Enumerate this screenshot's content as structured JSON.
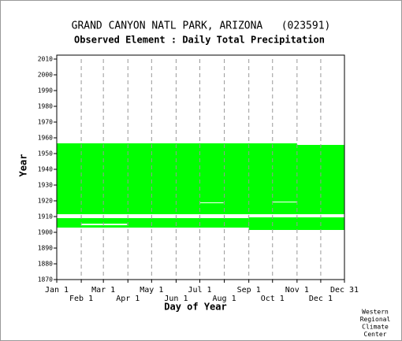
{
  "chart_data": {
    "type": "availability",
    "title": "GRAND CANYON NATL PARK, ARIZONA   (023591)",
    "subtitle": "Observed Element : Daily Total Precipitation",
    "ylabel": "Year",
    "xlabel": "Day of Year",
    "credit": [
      "Western",
      "Regional",
      "Climate",
      "Center"
    ],
    "color": "#00ff00",
    "gap_color": "#ffffff",
    "xgrid": true,
    "xlim": [
      1,
      365
    ],
    "ylim": [
      1870,
      2010
    ],
    "xticks": [
      {
        "value": 1,
        "label": "Jan 1"
      },
      {
        "value": 32,
        "label": "Feb 1"
      },
      {
        "value": 60,
        "label": "Mar 1"
      },
      {
        "value": 91,
        "label": "Apr 1"
      },
      {
        "value": 121,
        "label": "May 1"
      },
      {
        "value": 152,
        "label": "Jun 1"
      },
      {
        "value": 182,
        "label": "Jul 1"
      },
      {
        "value": 213,
        "label": "Aug 1"
      },
      {
        "value": 244,
        "label": "Sep 1"
      },
      {
        "value": 274,
        "label": "Oct 1"
      },
      {
        "value": 305,
        "label": "Nov 1"
      },
      {
        "value": 335,
        "label": "Dec 1"
      },
      {
        "value": 365,
        "label": "Dec 31"
      }
    ],
    "yticks": [
      1870,
      1880,
      1890,
      1900,
      1910,
      1920,
      1930,
      1940,
      1950,
      1960,
      1970,
      1980,
      1990,
      2000,
      2010
    ],
    "records": [
      {
        "days": [
          1,
          365
        ],
        "years": [
          1911.5,
          1956.5
        ]
      },
      {
        "days": [
          1,
          244
        ],
        "years": [
          1903,
          1909.5
        ]
      },
      {
        "days": [
          244,
          365
        ],
        "years": [
          1901.5,
          1909.5
        ]
      }
    ],
    "gaps": [
      {
        "days": [
          32,
          90
        ],
        "years": [
          1904.5,
          1905.5
        ]
      },
      {
        "days": [
          1,
          244
        ],
        "years": [
          1909,
          1909.5
        ]
      },
      {
        "days": [
          182,
          212
        ],
        "years": [
          1918.5,
          1919
        ]
      },
      {
        "days": [
          209,
          244
        ],
        "years": [
          1910.5,
          1911.5
        ]
      },
      {
        "days": [
          274,
          305
        ],
        "years": [
          1919,
          1919.5
        ]
      },
      {
        "days": [
          305,
          365
        ],
        "years": [
          1955.5,
          1956.5
        ]
      }
    ]
  }
}
